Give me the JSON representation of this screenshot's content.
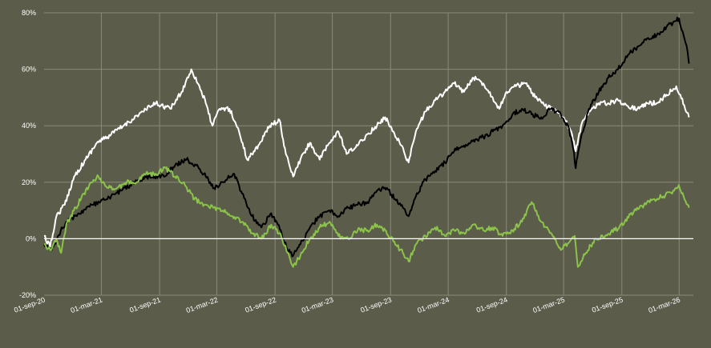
{
  "chart_data": {
    "type": "line",
    "title": "",
    "xlabel": "",
    "ylabel": "",
    "ylim": [
      -20,
      80
    ],
    "y_ticks": [
      -20,
      0,
      20,
      40,
      60,
      80
    ],
    "y_tick_labels": [
      "-20%",
      "0%",
      "20%",
      "40%",
      "60%",
      "80%"
    ],
    "x_range": [
      "2020-09-01",
      "2026-04-15"
    ],
    "x_ticks": [
      "2020-09-01",
      "2021-03-01",
      "2021-09-01",
      "2022-03-01",
      "2022-09-01",
      "2023-03-01",
      "2023-09-01",
      "2024-03-01",
      "2024-09-01",
      "2025-03-01",
      "2025-09-01",
      "2026-03-01"
    ],
    "x_tick_labels": [
      "01-sep-20",
      "01-mar-21",
      "01-sep-21",
      "01-mar-22",
      "01-sep-22",
      "01-mar-23",
      "01-sep-23",
      "01-mar-24",
      "01-sep-24",
      "01-mar-25",
      "01-sep-25",
      "01-mar-26"
    ],
    "grid": true,
    "colors": {
      "background": "#5c5c4a",
      "grid": "#8a8a78",
      "zero_line": "#ffffff",
      "axis_text": "#ffffff"
    },
    "series": [
      {
        "color": "#ffffff",
        "points": [
          [
            "2020-09-01",
            1
          ],
          [
            "2020-09-20",
            -3
          ],
          [
            "2020-10-10",
            8
          ],
          [
            "2020-11-05",
            12
          ],
          [
            "2020-12-05",
            22
          ],
          [
            "2021-01-10",
            28
          ],
          [
            "2021-02-15",
            34
          ],
          [
            "2021-03-20",
            36
          ],
          [
            "2021-05-10",
            40
          ],
          [
            "2021-07-10",
            45
          ],
          [
            "2021-08-20",
            48
          ],
          [
            "2021-10-05",
            46
          ],
          [
            "2021-11-10",
            52
          ],
          [
            "2021-12-10",
            60
          ],
          [
            "2022-01-05",
            54
          ],
          [
            "2022-01-25",
            48
          ],
          [
            "2022-02-15",
            40
          ],
          [
            "2022-03-10",
            46
          ],
          [
            "2022-04-10",
            46
          ],
          [
            "2022-05-10",
            38
          ],
          [
            "2022-06-05",
            28
          ],
          [
            "2022-07-10",
            33
          ],
          [
            "2022-08-15",
            40
          ],
          [
            "2022-09-15",
            42
          ],
          [
            "2022-10-05",
            30
          ],
          [
            "2022-10-28",
            22
          ],
          [
            "2022-11-20",
            28
          ],
          [
            "2022-12-20",
            34
          ],
          [
            "2023-01-20",
            28
          ],
          [
            "2023-02-20",
            34
          ],
          [
            "2023-03-20",
            38
          ],
          [
            "2023-04-15",
            30
          ],
          [
            "2023-05-20",
            33
          ],
          [
            "2023-06-20",
            37
          ],
          [
            "2023-07-20",
            40
          ],
          [
            "2023-08-15",
            43
          ],
          [
            "2023-09-10",
            38
          ],
          [
            "2023-10-05",
            33
          ],
          [
            "2023-10-28",
            27
          ],
          [
            "2023-11-20",
            38
          ],
          [
            "2023-12-20",
            45
          ],
          [
            "2024-01-20",
            49
          ],
          [
            "2024-02-20",
            52
          ],
          [
            "2024-03-20",
            55
          ],
          [
            "2024-04-20",
            52
          ],
          [
            "2024-05-20",
            57
          ],
          [
            "2024-06-20",
            55
          ],
          [
            "2024-07-20",
            50
          ],
          [
            "2024-08-10",
            46
          ],
          [
            "2024-09-01",
            52
          ],
          [
            "2024-10-01",
            54
          ],
          [
            "2024-11-01",
            55
          ],
          [
            "2024-12-01",
            50
          ],
          [
            "2025-01-01",
            47
          ],
          [
            "2025-02-01",
            46
          ],
          [
            "2025-03-01",
            43
          ],
          [
            "2025-03-25",
            38
          ],
          [
            "2025-04-08",
            31
          ],
          [
            "2025-04-25",
            40
          ],
          [
            "2025-05-20",
            45
          ],
          [
            "2025-06-20",
            48
          ],
          [
            "2025-07-20",
            48
          ],
          [
            "2025-08-20",
            49
          ],
          [
            "2025-09-20",
            47
          ],
          [
            "2025-10-20",
            46
          ],
          [
            "2025-11-20",
            48
          ],
          [
            "2025-12-20",
            48
          ],
          [
            "2026-01-20",
            51
          ],
          [
            "2026-02-20",
            54
          ],
          [
            "2026-03-05",
            51
          ],
          [
            "2026-03-20",
            46
          ],
          [
            "2026-04-01",
            43
          ]
        ]
      },
      {
        "color": "#000000",
        "points": [
          [
            "2020-09-01",
            -2
          ],
          [
            "2020-09-25",
            -4
          ],
          [
            "2020-10-15",
            1
          ],
          [
            "2020-11-10",
            6
          ],
          [
            "2020-12-20",
            9
          ],
          [
            "2021-02-01",
            12
          ],
          [
            "2021-03-20",
            14
          ],
          [
            "2021-05-01",
            17
          ],
          [
            "2021-06-15",
            20
          ],
          [
            "2021-08-01",
            22
          ],
          [
            "2021-09-15",
            22
          ],
          [
            "2021-10-20",
            26
          ],
          [
            "2021-11-25",
            28
          ],
          [
            "2021-12-25",
            26
          ],
          [
            "2022-01-25",
            22
          ],
          [
            "2022-02-20",
            18
          ],
          [
            "2022-03-20",
            20
          ],
          [
            "2022-04-25",
            23
          ],
          [
            "2022-05-20",
            16
          ],
          [
            "2022-06-20",
            8
          ],
          [
            "2022-07-20",
            4
          ],
          [
            "2022-08-20",
            9
          ],
          [
            "2022-09-10",
            5
          ],
          [
            "2022-10-10",
            -4
          ],
          [
            "2022-10-28",
            -6
          ],
          [
            "2022-11-20",
            -2
          ],
          [
            "2022-12-20",
            4
          ],
          [
            "2023-01-20",
            8
          ],
          [
            "2023-02-20",
            10
          ],
          [
            "2023-03-20",
            8
          ],
          [
            "2023-04-20",
            11
          ],
          [
            "2023-05-20",
            12
          ],
          [
            "2023-06-20",
            13
          ],
          [
            "2023-07-20",
            17
          ],
          [
            "2023-08-20",
            18
          ],
          [
            "2023-09-15",
            14
          ],
          [
            "2023-10-10",
            11
          ],
          [
            "2023-10-28",
            8
          ],
          [
            "2023-11-20",
            15
          ],
          [
            "2023-12-20",
            21
          ],
          [
            "2024-01-20",
            24
          ],
          [
            "2024-02-20",
            27
          ],
          [
            "2024-03-20",
            31
          ],
          [
            "2024-04-20",
            33
          ],
          [
            "2024-05-20",
            35
          ],
          [
            "2024-06-20",
            36
          ],
          [
            "2024-07-20",
            38
          ],
          [
            "2024-08-20",
            40
          ],
          [
            "2024-09-20",
            44
          ],
          [
            "2024-10-20",
            46
          ],
          [
            "2024-11-20",
            44
          ],
          [
            "2024-12-20",
            43
          ],
          [
            "2025-01-20",
            46
          ],
          [
            "2025-02-20",
            44
          ],
          [
            "2025-03-15",
            40
          ],
          [
            "2025-03-31",
            32
          ],
          [
            "2025-04-08",
            25
          ],
          [
            "2025-04-25",
            36
          ],
          [
            "2025-05-20",
            46
          ],
          [
            "2025-06-20",
            52
          ],
          [
            "2025-07-20",
            57
          ],
          [
            "2025-08-20",
            60
          ],
          [
            "2025-09-20",
            65
          ],
          [
            "2025-10-20",
            68
          ],
          [
            "2025-11-20",
            71
          ],
          [
            "2025-12-20",
            72
          ],
          [
            "2026-01-20",
            75
          ],
          [
            "2026-02-15",
            77
          ],
          [
            "2026-03-01",
            78
          ],
          [
            "2026-03-15",
            72
          ],
          [
            "2026-03-28",
            66
          ],
          [
            "2026-04-01",
            62
          ]
        ]
      },
      {
        "color": "#8bc34a",
        "points": [
          [
            "2020-09-01",
            -2
          ],
          [
            "2020-09-20",
            -4
          ],
          [
            "2020-10-10",
            0
          ],
          [
            "2020-10-25",
            -5
          ],
          [
            "2020-11-10",
            5
          ],
          [
            "2020-12-10",
            11
          ],
          [
            "2021-01-05",
            16
          ],
          [
            "2021-02-01",
            20
          ],
          [
            "2021-02-20",
            22
          ],
          [
            "2021-03-20",
            18
          ],
          [
            "2021-04-20",
            18
          ],
          [
            "2021-05-20",
            20
          ],
          [
            "2021-06-20",
            20
          ],
          [
            "2021-07-20",
            23
          ],
          [
            "2021-08-20",
            23
          ],
          [
            "2021-09-20",
            25
          ],
          [
            "2021-10-20",
            22
          ],
          [
            "2021-11-20",
            19
          ],
          [
            "2021-12-20",
            14
          ],
          [
            "2022-01-20",
            12
          ],
          [
            "2022-02-20",
            11
          ],
          [
            "2022-03-20",
            10
          ],
          [
            "2022-04-20",
            8
          ],
          [
            "2022-05-20",
            6
          ],
          [
            "2022-06-20",
            2
          ],
          [
            "2022-07-20",
            0
          ],
          [
            "2022-08-20",
            5
          ],
          [
            "2022-09-15",
            2
          ],
          [
            "2022-10-10",
            -5
          ],
          [
            "2022-10-28",
            -10
          ],
          [
            "2022-11-20",
            -6
          ],
          [
            "2022-12-20",
            0
          ],
          [
            "2023-01-20",
            4
          ],
          [
            "2023-02-20",
            6
          ],
          [
            "2023-03-20",
            1
          ],
          [
            "2023-04-20",
            0
          ],
          [
            "2023-05-20",
            3
          ],
          [
            "2023-06-20",
            3
          ],
          [
            "2023-07-20",
            5
          ],
          [
            "2023-08-15",
            3
          ],
          [
            "2023-09-10",
            -1
          ],
          [
            "2023-10-10",
            -5
          ],
          [
            "2023-10-28",
            -8
          ],
          [
            "2023-11-20",
            -2
          ],
          [
            "2023-12-20",
            1
          ],
          [
            "2024-01-20",
            4
          ],
          [
            "2024-02-20",
            1
          ],
          [
            "2024-03-20",
            3
          ],
          [
            "2024-04-20",
            2
          ],
          [
            "2024-05-20",
            5
          ],
          [
            "2024-06-20",
            3
          ],
          [
            "2024-07-20",
            4
          ],
          [
            "2024-08-20",
            1
          ],
          [
            "2024-09-20",
            3
          ],
          [
            "2024-10-20",
            6
          ],
          [
            "2024-11-20",
            13
          ],
          [
            "2024-12-20",
            6
          ],
          [
            "2025-01-20",
            2
          ],
          [
            "2025-02-20",
            -4
          ],
          [
            "2025-03-20",
            -1
          ],
          [
            "2025-04-05",
            1
          ],
          [
            "2025-04-15",
            -10
          ],
          [
            "2025-05-10",
            -5
          ],
          [
            "2025-06-10",
            0
          ],
          [
            "2025-07-10",
            1
          ],
          [
            "2025-08-10",
            3
          ],
          [
            "2025-09-10",
            6
          ],
          [
            "2025-10-10",
            10
          ],
          [
            "2025-11-10",
            12
          ],
          [
            "2025-12-10",
            14
          ],
          [
            "2026-01-10",
            15
          ],
          [
            "2026-02-10",
            17
          ],
          [
            "2026-02-28",
            19
          ],
          [
            "2026-03-15",
            15
          ],
          [
            "2026-03-28",
            12
          ],
          [
            "2026-04-01",
            11
          ]
        ]
      }
    ]
  }
}
